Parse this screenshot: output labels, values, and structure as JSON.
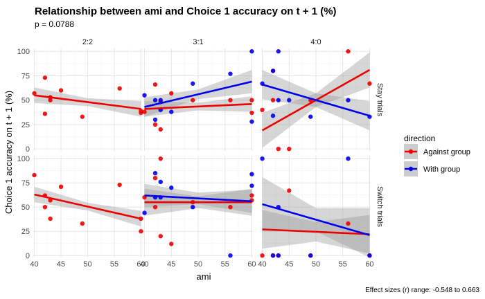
{
  "chart_data": {
    "type": "scatter",
    "title": "Relationship between ami and Choice 1 accuracy on t + 1 (%)",
    "subtitle": "p = 0.0788",
    "xlabel": "ami",
    "ylabel": "Choice 1 accuracy on t + 1 (%)",
    "caption": "Effect sizes (r) range: -0.548 to 0.663",
    "xlim": [
      39.8,
      60.2
    ],
    "ylim": [
      -2,
      103
    ],
    "x_ticks": [
      40,
      45,
      50,
      55,
      60
    ],
    "y_ticks": [
      0,
      25,
      50,
      75,
      100
    ],
    "grid": true,
    "col_panels": [
      "2:2",
      "3:1",
      "4:0"
    ],
    "row_panels": [
      "Stay trials",
      "Switch trials"
    ],
    "legend": {
      "title": "direction",
      "position": "right",
      "entries": [
        {
          "label": "Against group",
          "color": "#ee0000"
        },
        {
          "label": "With group",
          "color": "#0000ee"
        }
      ]
    },
    "panels": [
      {
        "col": "2:2",
        "row": "Stay trials",
        "series": [
          {
            "direction": "Against group",
            "color": "#ee0000",
            "points": [
              [
                40,
                57
              ],
              [
                42,
                36
              ],
              [
                42,
                73
              ],
              [
                43,
                50
              ],
              [
                43,
                53
              ],
              [
                45,
                60
              ],
              [
                49,
                33
              ],
              [
                56,
                62
              ],
              [
                60,
                37
              ],
              [
                60,
                39
              ]
            ],
            "fit": {
              "x": [
                40,
                60
              ],
              "y": [
                55,
                41
              ]
            },
            "band": [
              8,
              4,
              8
            ]
          }
        ]
      },
      {
        "col": "3:1",
        "row": "Stay trials",
        "series": [
          {
            "direction": "Against group",
            "color": "#ee0000",
            "points": [
              [
                40,
                38
              ],
              [
                42,
                25
              ],
              [
                42,
                66
              ],
              [
                43,
                20
              ],
              [
                43,
                48
              ],
              [
                45,
                57
              ],
              [
                49,
                50
              ],
              [
                56,
                50
              ],
              [
                60,
                50
              ],
              [
                60,
                37
              ]
            ],
            "fit": {
              "x": [
                40,
                60
              ],
              "y": [
                41,
                46
              ]
            },
            "band": [
              8,
              4,
              8
            ]
          },
          {
            "direction": "With group",
            "color": "#0000ee",
            "points": [
              [
                40,
                55
              ],
              [
                42,
                30
              ],
              [
                42,
                50
              ],
              [
                43,
                40
              ],
              [
                43,
                50
              ],
              [
                45,
                38
              ],
              [
                49,
                67
              ],
              [
                56,
                77
              ],
              [
                60,
                100
              ],
              [
                60,
                28
              ]
            ],
            "fit": {
              "x": [
                40,
                60
              ],
              "y": [
                43,
                69
              ]
            },
            "band": [
              10,
              5,
              12
            ]
          }
        ]
      },
      {
        "col": "4:0",
        "row": "Stay trials",
        "series": [
          {
            "direction": "Against group",
            "color": "#ee0000",
            "points": [
              [
                40,
                40
              ],
              [
                42,
                80
              ],
              [
                42,
                50
              ],
              [
                43,
                0
              ],
              [
                45,
                0
              ],
              [
                49,
                50
              ],
              [
                56,
                100
              ],
              [
                60,
                67
              ]
            ],
            "fit": {
              "x": [
                40,
                60
              ],
              "y": [
                19,
                81
              ]
            },
            "band": [
              18,
              7,
              18
            ]
          },
          {
            "direction": "With group",
            "color": "#0000ee",
            "points": [
              [
                40,
                67
              ],
              [
                42,
                80
              ],
              [
                42,
                34
              ],
              [
                43,
                100
              ],
              [
                43,
                50
              ],
              [
                45,
                50
              ],
              [
                49,
                33
              ],
              [
                56,
                50
              ],
              [
                60,
                33
              ]
            ],
            "fit": {
              "x": [
                40,
                60
              ],
              "y": [
                66,
                34
              ]
            },
            "band": [
              15,
              7,
              15
            ]
          }
        ]
      },
      {
        "col": "2:2",
        "row": "Switch trials",
        "series": [
          {
            "direction": "Against group",
            "color": "#ee0000",
            "points": [
              [
                40,
                83
              ],
              [
                42,
                62
              ],
              [
                42,
                50
              ],
              [
                43,
                57
              ],
              [
                43,
                38
              ],
              [
                45,
                71
              ],
              [
                49,
                33
              ],
              [
                56,
                73
              ],
              [
                60,
                38
              ],
              [
                60,
                25
              ]
            ],
            "fit": {
              "x": [
                40,
                60
              ],
              "y": [
                63,
                38
              ]
            },
            "band": [
              8,
              4,
              8
            ]
          }
        ]
      },
      {
        "col": "3:1",
        "row": "Switch trials",
        "series": [
          {
            "direction": "Against group",
            "color": "#ee0000",
            "points": [
              [
                40,
                60
              ],
              [
                42,
                50
              ],
              [
                42,
                80
              ],
              [
                43,
                100
              ],
              [
                43,
                20
              ],
              [
                45,
                12
              ],
              [
                49,
                55
              ],
              [
                56,
                50
              ],
              [
                60,
                57
              ],
              [
                60,
                62
              ]
            ],
            "fit": {
              "x": [
                40,
                60
              ],
              "y": [
                55,
                55
              ]
            },
            "band": [
              14,
              6,
              14
            ]
          },
          {
            "direction": "With group",
            "color": "#0000ee",
            "points": [
              [
                40,
                44
              ],
              [
                42,
                85
              ],
              [
                42,
                60
              ],
              [
                43,
                60
              ],
              [
                43,
                76
              ],
              [
                45,
                70
              ],
              [
                49,
                50
              ],
              [
                56,
                0
              ],
              [
                60,
                84
              ],
              [
                60,
                72
              ]
            ],
            "fit": {
              "x": [
                40,
                60
              ],
              "y": [
                62,
                56
              ]
            },
            "band": [
              12,
              6,
              12
            ]
          }
        ]
      },
      {
        "col": "4:0",
        "row": "Switch trials",
        "series": [
          {
            "direction": "Against group",
            "color": "#ee0000",
            "points": [
              [
                40,
                0
              ],
              [
                42,
                0
              ],
              [
                43,
                0
              ],
              [
                45,
                67
              ],
              [
                49,
                0
              ],
              [
                56,
                33
              ],
              [
                60,
                0
              ]
            ],
            "fit": {
              "x": [
                40,
                60
              ],
              "y": [
                27,
                22
              ]
            },
            "band": [
              20,
              10,
              20
            ]
          },
          {
            "direction": "With group",
            "color": "#0000ee",
            "points": [
              [
                40,
                100
              ],
              [
                42,
                0
              ],
              [
                43,
                50
              ],
              [
                43,
                0
              ],
              [
                49,
                0
              ],
              [
                56,
                100
              ],
              [
                60,
                0
              ]
            ],
            "fit": {
              "x": [
                40,
                60
              ],
              "y": [
                53,
                21
              ]
            },
            "band": [
              28,
              12,
              28
            ]
          }
        ]
      }
    ]
  }
}
